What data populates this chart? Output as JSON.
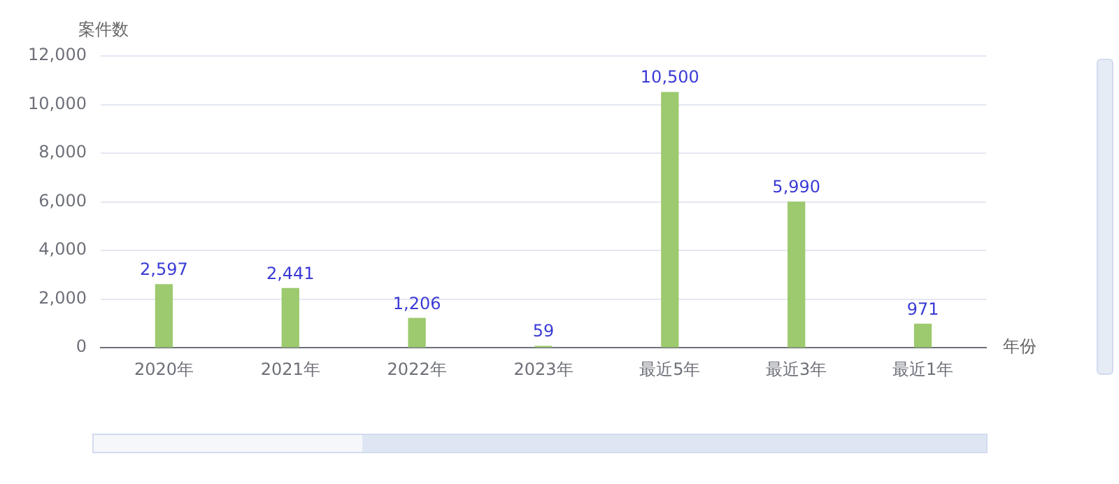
{
  "chart_data": {
    "type": "bar",
    "xlabel": "年份",
    "ylabel": "案件数",
    "categories": [
      "2020年",
      "2021年",
      "2022年",
      "2023年",
      "最近5年",
      "最近3年",
      "最近1年"
    ],
    "series": [
      {
        "color": "#9dc96f",
        "values": [
          2597,
          2441,
          1206,
          59,
          10500,
          5990,
          971
        ],
        "value_labels": [
          "2,597",
          "2,441",
          "1,206",
          "59",
          "10,500",
          "5,990",
          "971"
        ]
      }
    ],
    "ylim": [
      0,
      12000
    ],
    "yticks": [
      {
        "value": 0,
        "label": "0"
      },
      {
        "value": 2000,
        "label": "2,000"
      },
      {
        "value": 4000,
        "label": "4,000"
      },
      {
        "value": 6000,
        "label": "6,000"
      },
      {
        "value": 8000,
        "label": "8,000"
      },
      {
        "value": 10000,
        "label": "10,000"
      },
      {
        "value": 12000,
        "label": "12,000"
      }
    ],
    "grid": "y",
    "legend": false
  }
}
